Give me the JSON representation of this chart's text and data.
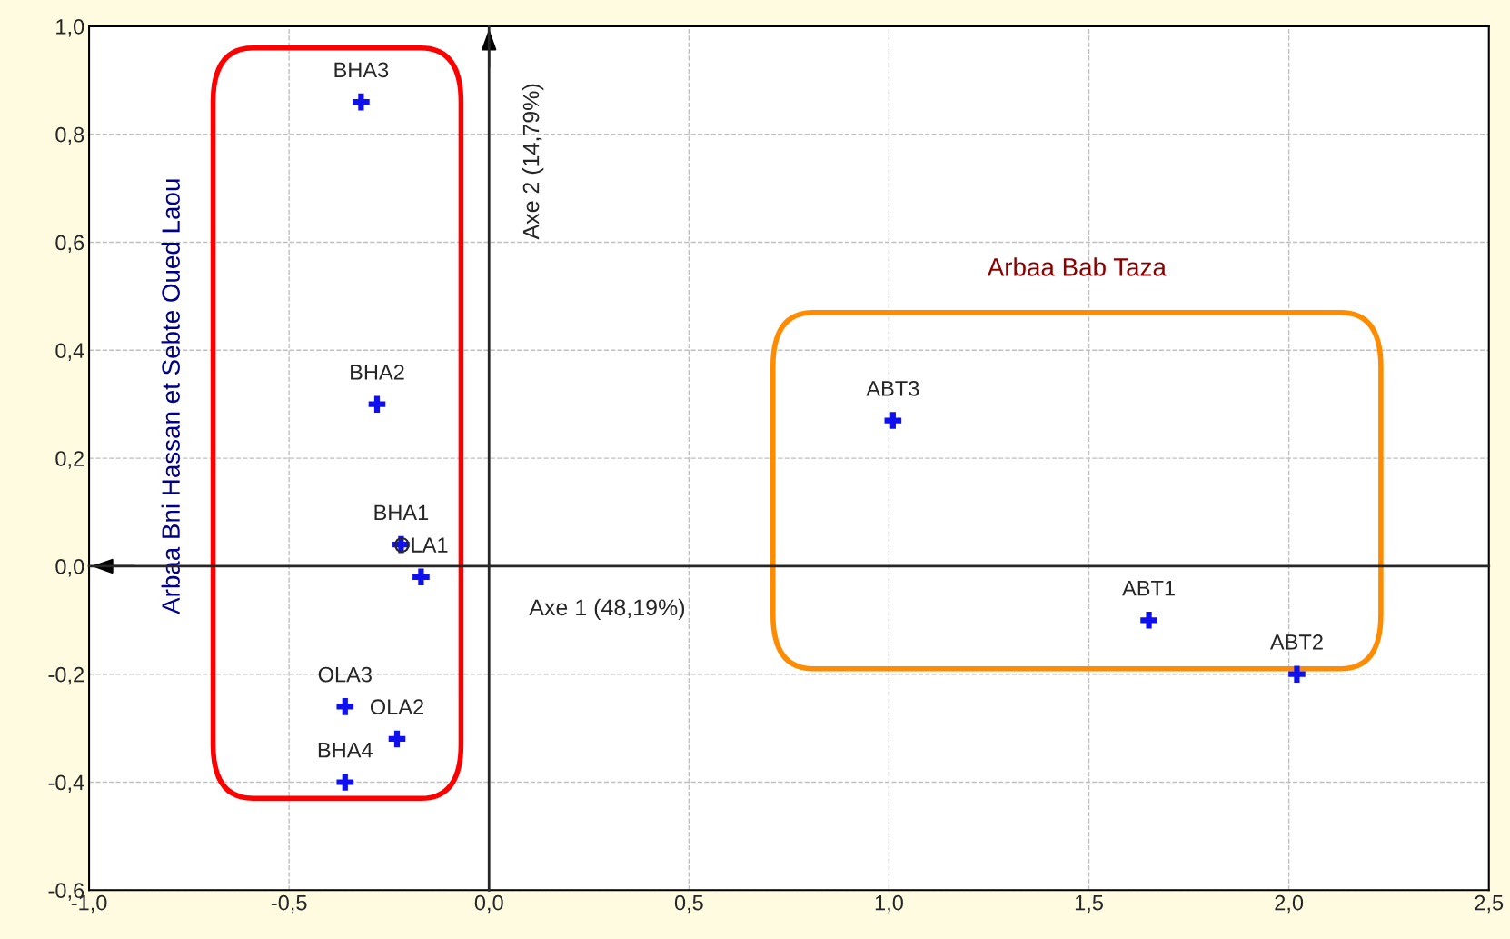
{
  "chart_data": {
    "type": "scatter",
    "series": [
      {
        "color": "#1010ee",
        "x": [
          -0.32,
          -0.28,
          -0.22,
          -0.17,
          -0.36,
          -0.23,
          -0.36
        ],
        "values": [
          0.86,
          0.3,
          0.04,
          -0.02,
          -0.26,
          -0.32,
          -0.4
        ]
      },
      {
        "color": "#1010ee",
        "x": [
          1.01,
          1.65,
          2.02
        ],
        "values": [
          0.27,
          -0.1,
          -0.2
        ]
      }
    ],
    "annotations": [
      "Arbaa Bni Hassan et Sebte Oued Laou",
      "Arbaa Bab Taza",
      {
        "text": "BHA3",
        "x": -0.32,
        "y": 0.86
      },
      {
        "text": "BHA2",
        "x": -0.28,
        "y": 0.3
      },
      {
        "text": "BHA1",
        "x": -0.22,
        "y": 0.04
      },
      {
        "text": "OLA1",
        "x": -0.17,
        "y": -0.02
      },
      {
        "text": "OLA3",
        "x": -0.36,
        "y": -0.26
      },
      {
        "text": "OLA2",
        "x": -0.23,
        "y": -0.32
      },
      {
        "text": "BHA4",
        "x": -0.36,
        "y": -0.4
      },
      {
        "text": "ABT3",
        "x": 1.01,
        "y": 0.27
      },
      {
        "text": "ABT1",
        "x": 1.65,
        "y": -0.1
      },
      {
        "text": "ABT2",
        "x": 2.02,
        "y": -0.2
      }
    ],
    "xlabel": "Axe 1 (48,19%)",
    "ylabel": "Axe 2 (14,79%)",
    "xlim": [
      -1.0,
      2.5
    ],
    "xticks": [
      {
        "value": -1.0,
        "label": "-1,0"
      },
      {
        "value": -0.5,
        "label": "-0,5"
      },
      {
        "value": 0.0,
        "label": "0,0"
      },
      {
        "value": 0.5,
        "label": "0,5"
      },
      {
        "value": 1.0,
        "label": "1,0"
      },
      {
        "value": 1.5,
        "label": "1,5"
      },
      {
        "value": 2.0,
        "label": "2,0"
      },
      {
        "value": 2.5,
        "label": "2,5"
      }
    ],
    "ylim": [
      -0.6,
      1.0
    ],
    "yticks": [
      {
        "value": -0.6,
        "label": "-0,6"
      },
      {
        "value": -0.4,
        "label": "-0,4"
      },
      {
        "value": -0.2,
        "label": "-0,2"
      },
      {
        "value": 0.0,
        "label": "0,0"
      },
      {
        "value": 0.2,
        "label": "0,2"
      },
      {
        "value": 0.4,
        "label": "0,4"
      },
      {
        "value": 0.6,
        "label": "0,6"
      },
      {
        "value": 0.8,
        "label": "0,8"
      },
      {
        "value": 1.0,
        "label": "1,0"
      }
    ],
    "grid": true,
    "marker": "cross"
  }
}
